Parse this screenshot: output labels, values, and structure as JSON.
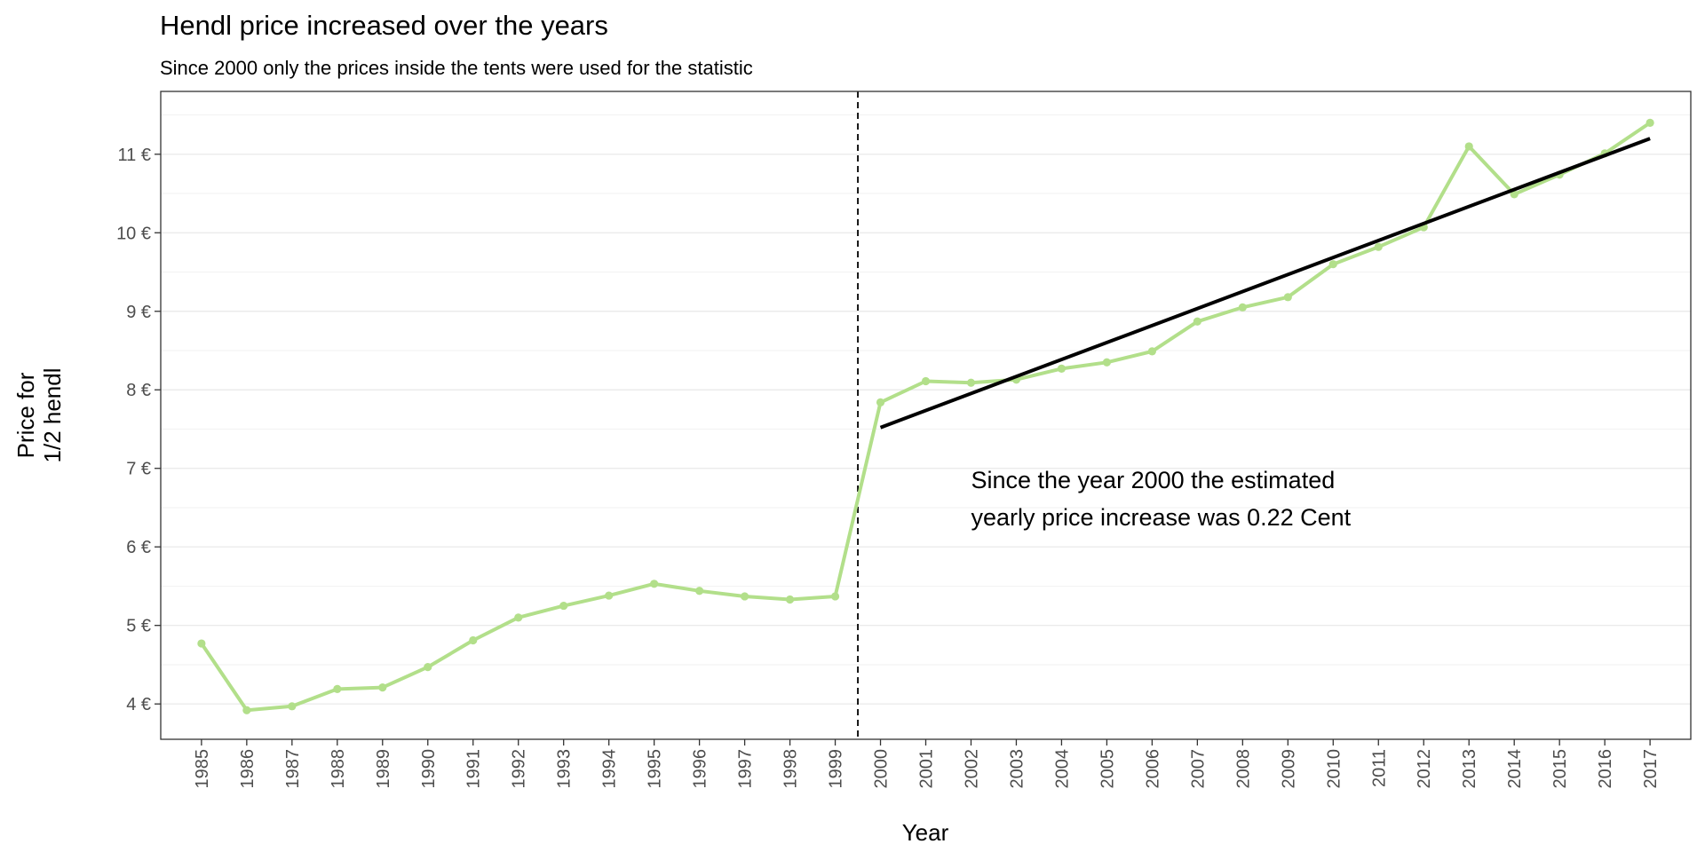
{
  "chart_data": {
    "type": "line",
    "title": "Hendl price increased over the years",
    "subtitle": "Since 2000 only the prices inside the tents were used for the statistic",
    "xlabel": "Year",
    "ylabel": [
      "Price for",
      "1/2 hendl"
    ],
    "x": [
      1985,
      1986,
      1987,
      1988,
      1989,
      1990,
      1991,
      1992,
      1993,
      1994,
      1995,
      1996,
      1997,
      1998,
      1999,
      2000,
      2001,
      2002,
      2003,
      2004,
      2005,
      2006,
      2007,
      2008,
      2009,
      2010,
      2011,
      2012,
      2013,
      2014,
      2015,
      2016,
      2017
    ],
    "series": [
      {
        "color": "#b2df8a",
        "values": [
          4.77,
          3.92,
          3.97,
          4.19,
          4.21,
          4.47,
          4.81,
          5.1,
          5.25,
          5.38,
          5.53,
          5.44,
          5.37,
          5.33,
          5.37,
          7.84,
          8.11,
          8.09,
          8.13,
          8.27,
          8.35,
          8.49,
          8.87,
          9.05,
          9.18,
          9.6,
          9.82,
          10.07,
          11.1,
          10.49,
          10.74,
          11.01,
          11.4
        ]
      }
    ],
    "trend_line": {
      "color": "#000000",
      "x": [
        2000,
        2017
      ],
      "y": [
        7.52,
        11.2
      ]
    },
    "vline": {
      "x": 1999.5,
      "style": "dashed",
      "color": "#000000"
    },
    "y_ticks": [
      4,
      5,
      6,
      7,
      8,
      9,
      10,
      11
    ],
    "y_tick_suffix": " €",
    "xlim": [
      1984.1,
      2017.9
    ],
    "ylim": [
      3.55,
      11.8
    ],
    "grid": true,
    "annotation": {
      "lines": [
        "Since the year 2000 the estimated",
        "yearly price increase was 0.22 Cent"
      ],
      "x": 2002,
      "y": 6.75
    }
  }
}
